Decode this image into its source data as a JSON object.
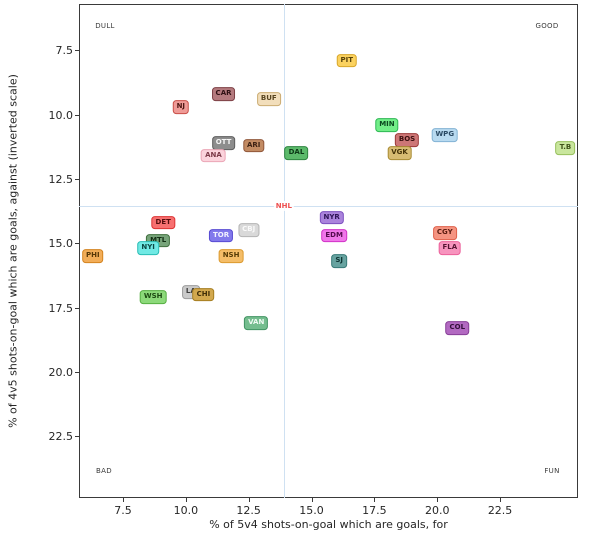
{
  "chart_data": {
    "type": "scatter",
    "title": "",
    "xlabel": "% of 5v4 shots-on-goal which are goals, for",
    "ylabel": "% of 4v5 shots-on-goal which are goals, against (inverted scale)",
    "x_ticks": [
      7.5,
      10.0,
      12.5,
      15.0,
      17.5,
      20.0,
      22.5
    ],
    "x_tick_labels": [
      "7.5",
      "10.0",
      "12.5",
      "15.0",
      "17.5",
      "20.0",
      "22.5"
    ],
    "y_ticks": [
      7.5,
      10.0,
      12.5,
      15.0,
      17.5,
      20.0,
      22.5
    ],
    "y_tick_labels": [
      "7.5",
      "10.0",
      "12.5",
      "15.0",
      "17.5",
      "20.0",
      "22.5"
    ],
    "xlim": [
      5.75,
      25.6
    ],
    "ylim": [
      5.7,
      24.9
    ],
    "y_axis_inverted": true,
    "grid": false,
    "quadrant_labels": {
      "top_left": "DULL",
      "top_right": "GOOD",
      "bottom_left": "BAD",
      "bottom_right": "FUN"
    },
    "league_average": {
      "label": "NHL",
      "x": 13.9,
      "y": 13.55,
      "label_color": "#ee5050",
      "line_color": "#cfe1f2"
    },
    "points": [
      {
        "label": "NJ",
        "x": 9.8,
        "y": 9.7,
        "fill": "#ef9b97",
        "border": "#c94f48",
        "text_color": "#4c1511"
      },
      {
        "label": "CAR",
        "x": 11.5,
        "y": 9.2,
        "fill": "#b47a7e",
        "border": "#7e4046",
        "text_color": "#2e1013"
      },
      {
        "label": "BUF",
        "x": 13.3,
        "y": 9.4,
        "fill": "#f2debb",
        "border": "#cbac72",
        "text_color": "#584520"
      },
      {
        "label": "OTT",
        "x": 11.5,
        "y": 11.1,
        "fill": "#8d8d8d",
        "border": "#5e5e5e",
        "text_color": "#f5f5f5"
      },
      {
        "label": "ARI",
        "x": 12.7,
        "y": 11.2,
        "fill": "#c28b63",
        "border": "#91573a",
        "text_color": "#3d2113"
      },
      {
        "label": "ANA",
        "x": 11.1,
        "y": 11.6,
        "fill": "#fbd3dc",
        "border": "#eba6b6",
        "text_color": "#7c3a48"
      },
      {
        "label": "DAL",
        "x": 14.4,
        "y": 11.5,
        "fill": "#5cba6b",
        "border": "#2e8540",
        "text_color": "#0d3a18"
      },
      {
        "label": "PIT",
        "x": 16.4,
        "y": 7.9,
        "fill": "#fbd25f",
        "border": "#d8a62a",
        "text_color": "#584208"
      },
      {
        "label": "MIN",
        "x": 18.0,
        "y": 10.4,
        "fill": "#72ee88",
        "border": "#2eb854",
        "text_color": "#0c4a20"
      },
      {
        "label": "BOS",
        "x": 18.8,
        "y": 11.0,
        "fill": "#cd7676",
        "border": "#9c3a3a",
        "text_color": "#3a0f0f"
      },
      {
        "label": "WPG",
        "x": 20.3,
        "y": 10.8,
        "fill": "#b8daf0",
        "border": "#82b2d4",
        "text_color": "#2a4a64"
      },
      {
        "label": "VGK",
        "x": 18.5,
        "y": 11.5,
        "fill": "#d7bc72",
        "border": "#a98c34",
        "text_color": "#463408"
      },
      {
        "label": "T.B",
        "x": 25.1,
        "y": 11.3,
        "fill": "#c9e69d",
        "border": "#97c05c",
        "text_color": "#3f5319"
      },
      {
        "label": "DET",
        "x": 9.1,
        "y": 14.2,
        "fill": "#f77070",
        "border": "#dd3333",
        "text_color": "#550d0d"
      },
      {
        "label": "MTL",
        "x": 8.9,
        "y": 14.9,
        "fill": "#77a47a",
        "border": "#41703f",
        "text_color": "#122e14"
      },
      {
        "label": "NYI",
        "x": 8.5,
        "y": 15.2,
        "fill": "#70e9e4",
        "border": "#28bcb4",
        "text_color": "#0b4743"
      },
      {
        "label": "PHI",
        "x": 6.3,
        "y": 15.5,
        "fill": "#f2ad58",
        "border": "#d4831f",
        "text_color": "#573706"
      },
      {
        "label": "TOR",
        "x": 11.4,
        "y": 14.7,
        "fill": "#8279ec",
        "border": "#584bd2",
        "text_color": "#f2f2ff"
      },
      {
        "label": "CBJ",
        "x": 12.5,
        "y": 14.5,
        "fill": "#d9d9d9",
        "border": "#b4b4b4",
        "text_color": "#fafafa"
      },
      {
        "label": "NSH",
        "x": 11.8,
        "y": 15.5,
        "fill": "#f4bd68",
        "border": "#dc9a2e",
        "text_color": "#573c06"
      },
      {
        "label": "LA",
        "x": 10.2,
        "y": 16.9,
        "fill": "#cacaca",
        "border": "#9c9c9c",
        "text_color": "#3e3e3e"
      },
      {
        "label": "CHI",
        "x": 10.7,
        "y": 17.0,
        "fill": "#d2a84e",
        "border": "#a67e20",
        "text_color": "#402e08"
      },
      {
        "label": "WSH",
        "x": 8.7,
        "y": 17.1,
        "fill": "#8cd97a",
        "border": "#55ae41",
        "text_color": "#1c4a11"
      },
      {
        "label": "VAN",
        "x": 12.8,
        "y": 18.1,
        "fill": "#74bd8e",
        "border": "#429463",
        "text_color": "#f0faf3"
      },
      {
        "label": "NYR",
        "x": 15.8,
        "y": 14.0,
        "fill": "#aa83dc",
        "border": "#7d50bf",
        "text_color": "#2e1356"
      },
      {
        "label": "EDM",
        "x": 15.9,
        "y": 14.7,
        "fill": "#f076e9",
        "border": "#d133c7",
        "text_color": "#540a4e"
      },
      {
        "label": "SJ",
        "x": 16.1,
        "y": 15.7,
        "fill": "#67a3a0",
        "border": "#377a77",
        "text_color": "#0e3533"
      },
      {
        "label": "CGY",
        "x": 20.3,
        "y": 14.6,
        "fill": "#f59481",
        "border": "#df614b",
        "text_color": "#5a1c10"
      },
      {
        "label": "FLA",
        "x": 20.5,
        "y": 15.2,
        "fill": "#f794be",
        "border": "#ec609a",
        "text_color": "#561331"
      },
      {
        "label": "COL",
        "x": 20.8,
        "y": 18.3,
        "fill": "#b269c1",
        "border": "#873e97",
        "text_color": "#330f3b"
      }
    ]
  }
}
